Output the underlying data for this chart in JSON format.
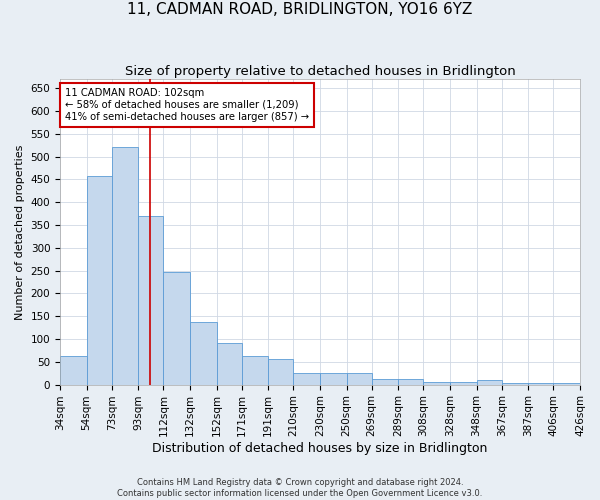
{
  "title": "11, CADMAN ROAD, BRIDLINGTON, YO16 6YZ",
  "subtitle": "Size of property relative to detached houses in Bridlington",
  "xlabel": "Distribution of detached houses by size in Bridlington",
  "ylabel": "Number of detached properties",
  "footer_line1": "Contains HM Land Registry data © Crown copyright and database right 2024.",
  "footer_line2": "Contains public sector information licensed under the Open Government Licence v3.0.",
  "bins": [
    34,
    54,
    73,
    93,
    112,
    132,
    152,
    171,
    191,
    210,
    230,
    250,
    269,
    289,
    308,
    328,
    348,
    367,
    387,
    406,
    426
  ],
  "bin_labels": [
    "34sqm",
    "54sqm",
    "73sqm",
    "93sqm",
    "112sqm",
    "132sqm",
    "152sqm",
    "171sqm",
    "191sqm",
    "210sqm",
    "230sqm",
    "250sqm",
    "269sqm",
    "289sqm",
    "308sqm",
    "328sqm",
    "348sqm",
    "367sqm",
    "387sqm",
    "406sqm",
    "426sqm"
  ],
  "values": [
    63,
    458,
    522,
    370,
    248,
    138,
    92,
    62,
    57,
    25,
    25,
    25,
    12,
    12,
    6,
    6,
    10,
    4,
    4,
    4,
    3
  ],
  "bar_color": "#c5d8ed",
  "bar_edge_color": "#5b9bd5",
  "grid_color": "#d0d8e4",
  "red_line_x": 102,
  "annotation_line1": "11 CADMAN ROAD: 102sqm",
  "annotation_line2": "← 58% of detached houses are smaller (1,209)",
  "annotation_line3": "41% of semi-detached houses are larger (857) →",
  "annotation_box_color": "#ffffff",
  "annotation_box_edge_color": "#cc0000",
  "ylim": [
    0,
    670
  ],
  "yticks": [
    0,
    50,
    100,
    150,
    200,
    250,
    300,
    350,
    400,
    450,
    500,
    550,
    600,
    650
  ],
  "background_color": "#e8eef4",
  "plot_bg_color": "#ffffff",
  "title_fontsize": 11,
  "subtitle_fontsize": 9.5,
  "xlabel_fontsize": 9,
  "ylabel_fontsize": 8,
  "tick_fontsize": 7.5,
  "footer_fontsize": 6
}
